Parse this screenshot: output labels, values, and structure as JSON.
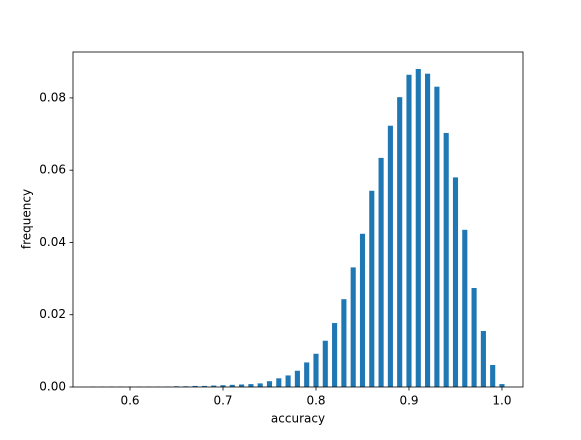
{
  "chart_data": {
    "type": "bar",
    "x_label": "accuracy",
    "y_label": "frequency",
    "color": "#1f77b4",
    "x": [
      0.56,
      0.57,
      0.58,
      0.59,
      0.6,
      0.61,
      0.62,
      0.63,
      0.64,
      0.65,
      0.66,
      0.67,
      0.68,
      0.69,
      0.7,
      0.71,
      0.72,
      0.73,
      0.74,
      0.75,
      0.76,
      0.77,
      0.78,
      0.79,
      0.8,
      0.81,
      0.82,
      0.83,
      0.84,
      0.85,
      0.86,
      0.87,
      0.88,
      0.89,
      0.9,
      0.91,
      0.92,
      0.93,
      0.94,
      0.95,
      0.96,
      0.97,
      0.98,
      0.99,
      1.0
    ],
    "values": [
      0.0001,
      0.0001,
      0.0001,
      0.0001,
      0.0001,
      0.0001,
      0.0001,
      0.0001,
      0.0001,
      0.0002,
      0.0002,
      0.0003,
      0.0003,
      0.0004,
      0.0005,
      0.0006,
      0.0007,
      0.0008,
      0.001,
      0.0016,
      0.0024,
      0.0032,
      0.0045,
      0.0068,
      0.0092,
      0.0128,
      0.0177,
      0.0243,
      0.0331,
      0.0424,
      0.0543,
      0.0634,
      0.0723,
      0.0802,
      0.0864,
      0.088,
      0.0867,
      0.0831,
      0.0703,
      0.058,
      0.0435,
      0.0274,
      0.0155,
      0.0061,
      0.0008
    ],
    "xlim": [
      0.5387,
      1.0226
    ],
    "ylim": [
      0,
      0.0927
    ],
    "xticks": [
      0.6,
      0.7,
      0.8,
      0.9,
      {
        "value": 1.0,
        "label": "1.0"
      }
    ],
    "yticks": [
      {
        "value": 0,
        "label": "0.00"
      },
      {
        "value": 0.02,
        "label": "0.02"
      },
      {
        "value": 0.04,
        "label": "0.04"
      },
      {
        "value": 0.06,
        "label": "0.06"
      },
      {
        "value": 0.08,
        "label": "0.08"
      }
    ]
  }
}
